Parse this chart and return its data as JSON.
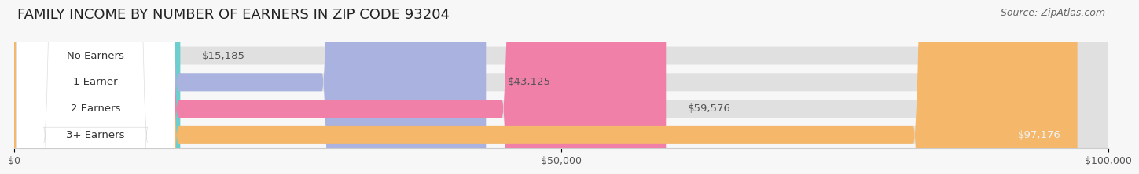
{
  "title": "FAMILY INCOME BY NUMBER OF EARNERS IN ZIP CODE 93204",
  "source": "Source: ZipAtlas.com",
  "categories": [
    "No Earners",
    "1 Earner",
    "2 Earners",
    "3+ Earners"
  ],
  "values": [
    15185,
    43125,
    59576,
    97176
  ],
  "labels": [
    "$15,185",
    "$43,125",
    "$59,576",
    "$97,176"
  ],
  "bar_colors": [
    "#6dcece",
    "#aab2e0",
    "#f080a8",
    "#f5b86a"
  ],
  "bar_bg_color": "#e0e0e0",
  "label_bg_color": "#ffffff",
  "max_value": 100000,
  "xtick_values": [
    0,
    50000,
    100000
  ],
  "xtick_labels": [
    "$0",
    "$50,000",
    "$100,000"
  ],
  "background_color": "#f7f7f7",
  "title_fontsize": 13,
  "label_fontsize": 9.5,
  "source_fontsize": 9,
  "cat_fontsize": 9.5,
  "bar_label_color_inside": "#ffffff",
  "bar_label_color_outside": "#555555",
  "cat_label_color": "#333333",
  "value_label_inside_color": "#e8e8e8"
}
